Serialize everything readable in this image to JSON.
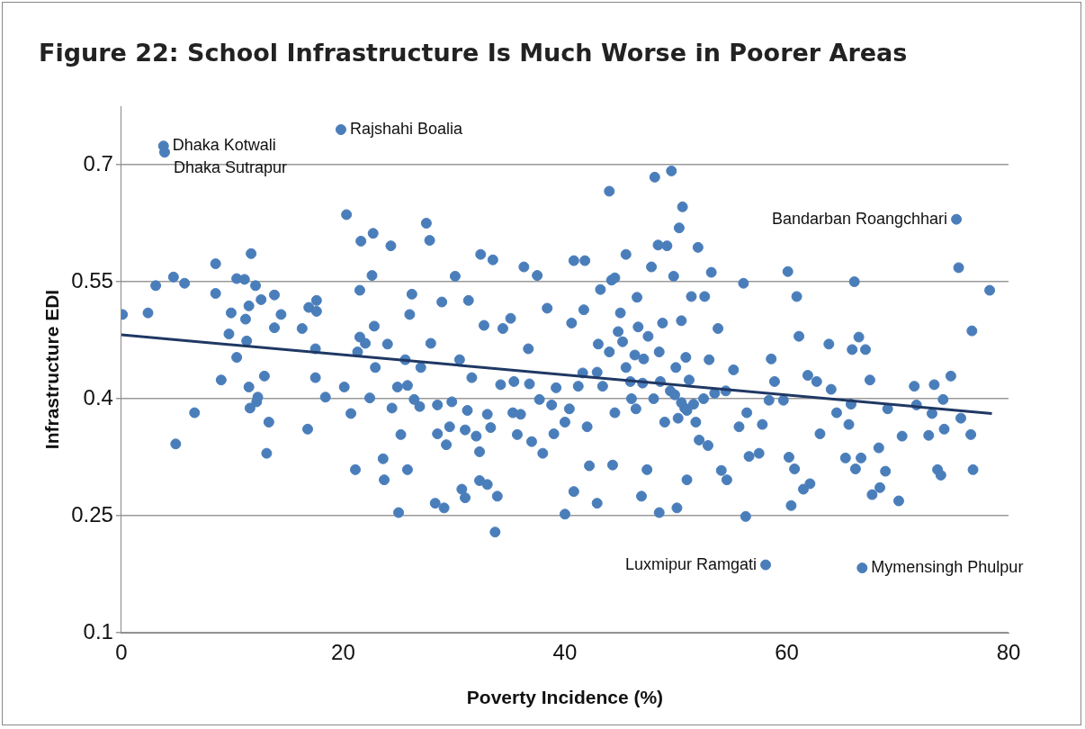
{
  "chart_data": {
    "type": "scatter",
    "title": "Figure 22: School Infrastructure Is Much Worse in Poorer Areas",
    "xlabel": "Poverty Incidence (%)",
    "ylabel": "Infrastructure EDI",
    "xlim": [
      0,
      80
    ],
    "xticks": [
      0,
      20,
      40,
      60,
      80
    ],
    "ylim": [
      0.1,
      0.775
    ],
    "yticks": [
      0.1,
      0.25,
      0.4,
      0.55,
      0.7
    ],
    "grid": "y",
    "legend": false,
    "marker": "circle",
    "series": [
      {
        "type": "scatter",
        "color": "#4a7ebb",
        "x": [
          3.8,
          3.9,
          19.8,
          75.3,
          58.1,
          66.8,
          0.1,
          2.4,
          3.1,
          4.7,
          5.7,
          4.9,
          6.6,
          8.5,
          8.5,
          9.0,
          9.9,
          9.7,
          10.4,
          10.4,
          11.1,
          11.2,
          11.3,
          11.5,
          11.5,
          11.7,
          11.6,
          12.1,
          12.2,
          12.3,
          12.6,
          12.9,
          13.1,
          13.3,
          13.8,
          13.8,
          14.4,
          16.3,
          16.8,
          16.9,
          17.5,
          17.6,
          17.6,
          17.5,
          18.4,
          20.1,
          20.3,
          20.7,
          21.1,
          21.3,
          21.5,
          21.6,
          21.5,
          22.0,
          22.4,
          22.6,
          22.7,
          22.8,
          22.9,
          23.7,
          23.6,
          24.3,
          24.4,
          24.9,
          25.0,
          25.2,
          25.6,
          25.8,
          26.0,
          26.2,
          25.8,
          26.4,
          26.9,
          27.9,
          27.5,
          27.8,
          28.3,
          28.5,
          28.9,
          29.1,
          29.3,
          29.6,
          29.8,
          30.1,
          30.5,
          30.7,
          31.0,
          31.2,
          31.3,
          31.6,
          32.0,
          32.3,
          32.3,
          32.4,
          32.7,
          33.0,
          33.3,
          33.5,
          33.9,
          33.7,
          34.2,
          34.4,
          35.1,
          35.4,
          35.3,
          35.7,
          36.3,
          36.7,
          36.8,
          37.5,
          37.7,
          38.0,
          38.4,
          38.8,
          39.2,
          40.0,
          40.4,
          40.6,
          40.8,
          40.8,
          41.2,
          41.6,
          41.7,
          41.8,
          42.0,
          42.2,
          42.9,
          42.9,
          43.2,
          43.4,
          44.0,
          44.2,
          44.3,
          44.5,
          44.8,
          45.2,
          45.5,
          45.9,
          46.3,
          46.4,
          46.6,
          46.9,
          47.1,
          47.4,
          47.8,
          48.1,
          48.4,
          48.5,
          48.6,
          48.8,
          49.2,
          49.6,
          49.8,
          49.9,
          50.1,
          50.3,
          50.5,
          50.6,
          50.8,
          50.9,
          51.0,
          51.2,
          51.4,
          51.6,
          52.0,
          52.1,
          52.6,
          52.9,
          53.2,
          53.5,
          53.8,
          54.1,
          54.5,
          54.6,
          55.2,
          55.7,
          56.1,
          56.3,
          56.4,
          56.6,
          57.5,
          57.8,
          58.4,
          58.6,
          58.9,
          59.7,
          60.1,
          60.2,
          60.4,
          60.7,
          60.9,
          61.1,
          61.5,
          61.9,
          62.1,
          62.7,
          63.0,
          63.8,
          64.0,
          64.5,
          65.3,
          65.6,
          65.8,
          65.9,
          66.1,
          66.2,
          66.5,
          66.7,
          67.1,
          67.5,
          67.7,
          68.3,
          68.4,
          68.9,
          69.1,
          70.1,
          70.4,
          71.5,
          71.7,
          72.8,
          73.1,
          73.3,
          73.6,
          73.9,
          74.1,
          74.2,
          74.8,
          75.5,
          75.7,
          76.6,
          76.7,
          76.8,
          78.3,
          50.5,
          51.0,
          49.5,
          50.2,
          48.0,
          47.0,
          46.0,
          52.5,
          51.8,
          49.0,
          45.5,
          44.0,
          43.0,
          40.0,
          39.0,
          37.0,
          36.0,
          33.0,
          31.0,
          28.5,
          27.0,
          24.0,
          47.5,
          48.5,
          50.0,
          53.0,
          45.0,
          46.5,
          44.5
        ],
        "values": [
          0.724,
          0.716,
          0.745,
          0.63,
          0.187,
          0.183,
          0.508,
          0.51,
          0.545,
          0.556,
          0.548,
          0.342,
          0.382,
          0.573,
          0.535,
          0.424,
          0.51,
          0.483,
          0.453,
          0.554,
          0.553,
          0.502,
          0.474,
          0.415,
          0.519,
          0.586,
          0.388,
          0.545,
          0.396,
          0.402,
          0.527,
          0.429,
          0.33,
          0.37,
          0.533,
          0.491,
          0.508,
          0.49,
          0.361,
          0.517,
          0.427,
          0.526,
          0.512,
          0.464,
          0.402,
          0.415,
          0.636,
          0.381,
          0.309,
          0.46,
          0.539,
          0.602,
          0.479,
          0.471,
          0.401,
          0.558,
          0.612,
          0.493,
          0.44,
          0.296,
          0.323,
          0.596,
          0.388,
          0.415,
          0.254,
          0.354,
          0.45,
          0.417,
          0.508,
          0.534,
          0.309,
          0.399,
          0.39,
          0.471,
          0.625,
          0.603,
          0.266,
          0.392,
          0.524,
          0.26,
          0.341,
          0.364,
          0.396,
          0.557,
          0.45,
          0.284,
          0.273,
          0.385,
          0.526,
          0.427,
          0.352,
          0.332,
          0.295,
          0.585,
          0.494,
          0.29,
          0.363,
          0.578,
          0.275,
          0.229,
          0.418,
          0.49,
          0.503,
          0.422,
          0.382,
          0.354,
          0.569,
          0.464,
          0.419,
          0.558,
          0.399,
          0.33,
          0.516,
          0.392,
          0.414,
          0.252,
          0.387,
          0.497,
          0.577,
          0.281,
          0.416,
          0.433,
          0.514,
          0.577,
          0.364,
          0.314,
          0.266,
          0.434,
          0.54,
          0.416,
          0.666,
          0.552,
          0.315,
          0.382,
          0.486,
          0.473,
          0.585,
          0.422,
          0.456,
          0.387,
          0.492,
          0.275,
          0.451,
          0.309,
          0.569,
          0.684,
          0.597,
          0.254,
          0.422,
          0.497,
          0.596,
          0.692,
          0.557,
          0.405,
          0.26,
          0.619,
          0.5,
          0.646,
          0.388,
          0.453,
          0.296,
          0.424,
          0.531,
          0.393,
          0.594,
          0.347,
          0.531,
          0.34,
          0.562,
          0.407,
          0.49,
          0.308,
          0.41,
          0.296,
          0.437,
          0.364,
          0.548,
          0.249,
          0.382,
          0.326,
          0.33,
          0.367,
          0.398,
          0.451,
          0.422,
          0.398,
          0.563,
          0.325,
          0.263,
          0.31,
          0.531,
          0.48,
          0.284,
          0.43,
          0.291,
          0.422,
          0.355,
          0.47,
          0.412,
          0.382,
          0.324,
          0.367,
          0.393,
          0.463,
          0.55,
          0.31,
          0.479,
          0.324,
          0.463,
          0.424,
          0.277,
          0.337,
          0.286,
          0.307,
          0.387,
          0.269,
          0.352,
          0.416,
          0.392,
          0.353,
          0.381,
          0.418,
          0.309,
          0.302,
          0.399,
          0.361,
          0.429,
          0.568,
          0.375,
          0.354,
          0.487,
          0.309,
          0.539,
          0.395,
          0.385,
          0.41,
          0.375,
          0.4,
          0.42,
          0.4,
          0.4,
          0.37,
          0.37,
          0.44,
          0.46,
          0.47,
          0.37,
          0.355,
          0.345,
          0.38,
          0.38,
          0.36,
          0.355,
          0.44,
          0.47,
          0.48,
          0.46,
          0.44,
          0.45,
          0.51,
          0.53,
          0.555
        ]
      },
      {
        "type": "line",
        "color": "#1f3864",
        "line_style": "solid",
        "marker": "none",
        "x": [
          0,
          78.5
        ],
        "values": [
          0.482,
          0.381
        ]
      }
    ],
    "annotations": [
      {
        "text": "Dhaka Kotwali",
        "x": 3.8,
        "y": 0.724
      },
      {
        "text": "Dhaka Sutrapur",
        "x": 3.9,
        "y": 0.716
      },
      {
        "text": "Rajshahi Boalia",
        "x": 19.8,
        "y": 0.745
      },
      {
        "text": "Bandarban Roangchhari",
        "x": 75.3,
        "y": 0.63
      },
      {
        "text": "Luxmipur Ramgati",
        "x": 58.1,
        "y": 0.187
      },
      {
        "text": "Mymensingh Phulpur",
        "x": 66.8,
        "y": 0.183
      }
    ]
  }
}
